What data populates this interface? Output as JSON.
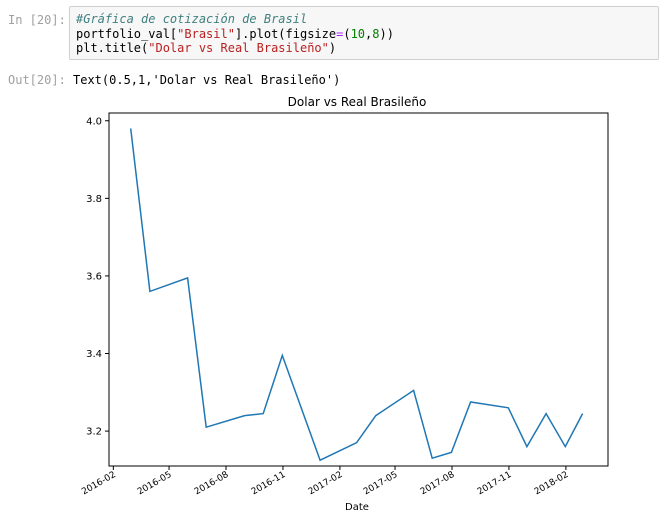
{
  "cell_in": {
    "prompt": "In [20]:",
    "code": {
      "comment": "#Gráfica de cotización de Brasil",
      "line2_a": "portfolio_val[",
      "line2_str": "\"Brasil\"",
      "line2_b": "].plot(figsize",
      "line2_eq": "=",
      "line2_c": "(",
      "line2_n1": "10",
      "line2_d": ",",
      "line2_n2": "8",
      "line2_e": "))",
      "line3_a": "plt.title(",
      "line3_str": "\"Dolar vs Real Brasileño\"",
      "line3_b": ")"
    }
  },
  "cell_out": {
    "prompt": "Out[20]:",
    "text": "Text(0.5,1,'Dolar vs Real Brasileño')"
  },
  "chart_data": {
    "type": "line",
    "title": "Dolar vs Real Brasileño",
    "xlabel": "Date",
    "ylabel": "",
    "grid": false,
    "line_color": "#1f77b4",
    "x": [
      "2016-02-29",
      "2016-03-31",
      "2016-05-31",
      "2016-06-30",
      "2016-08-31",
      "2016-09-30",
      "2016-10-31",
      "2016-12-31",
      "2017-02-28",
      "2017-03-31",
      "2017-05-31",
      "2017-06-30",
      "2017-07-31",
      "2017-08-31",
      "2017-10-31",
      "2017-11-30",
      "2017-12-31",
      "2018-01-31",
      "2018-02-28"
    ],
    "y": [
      3.98,
      3.56,
      3.595,
      3.21,
      3.24,
      3.245,
      3.395,
      3.125,
      3.17,
      3.24,
      3.305,
      3.13,
      3.145,
      3.275,
      3.26,
      3.16,
      3.245,
      3.16,
      3.245
    ],
    "xlim": [
      "2016-01-25",
      "2018-04-10"
    ],
    "ylim": [
      3.11,
      4.02
    ],
    "yticks": [
      3.2,
      3.4,
      3.6,
      3.8,
      4.0
    ],
    "ytick_labels": [
      "3.2",
      "3.4",
      "3.6",
      "3.8",
      "4.0"
    ],
    "xticks": [
      "2016-02-01",
      "2016-05-01",
      "2016-08-01",
      "2016-11-01",
      "2017-02-01",
      "2017-05-01",
      "2017-08-01",
      "2017-11-01",
      "2018-02-01"
    ],
    "xtick_labels": [
      "2016-02",
      "2016-05",
      "2016-08",
      "2016-11",
      "2017-02",
      "2017-05",
      "2017-08",
      "2017-11",
      "2018-02"
    ]
  }
}
